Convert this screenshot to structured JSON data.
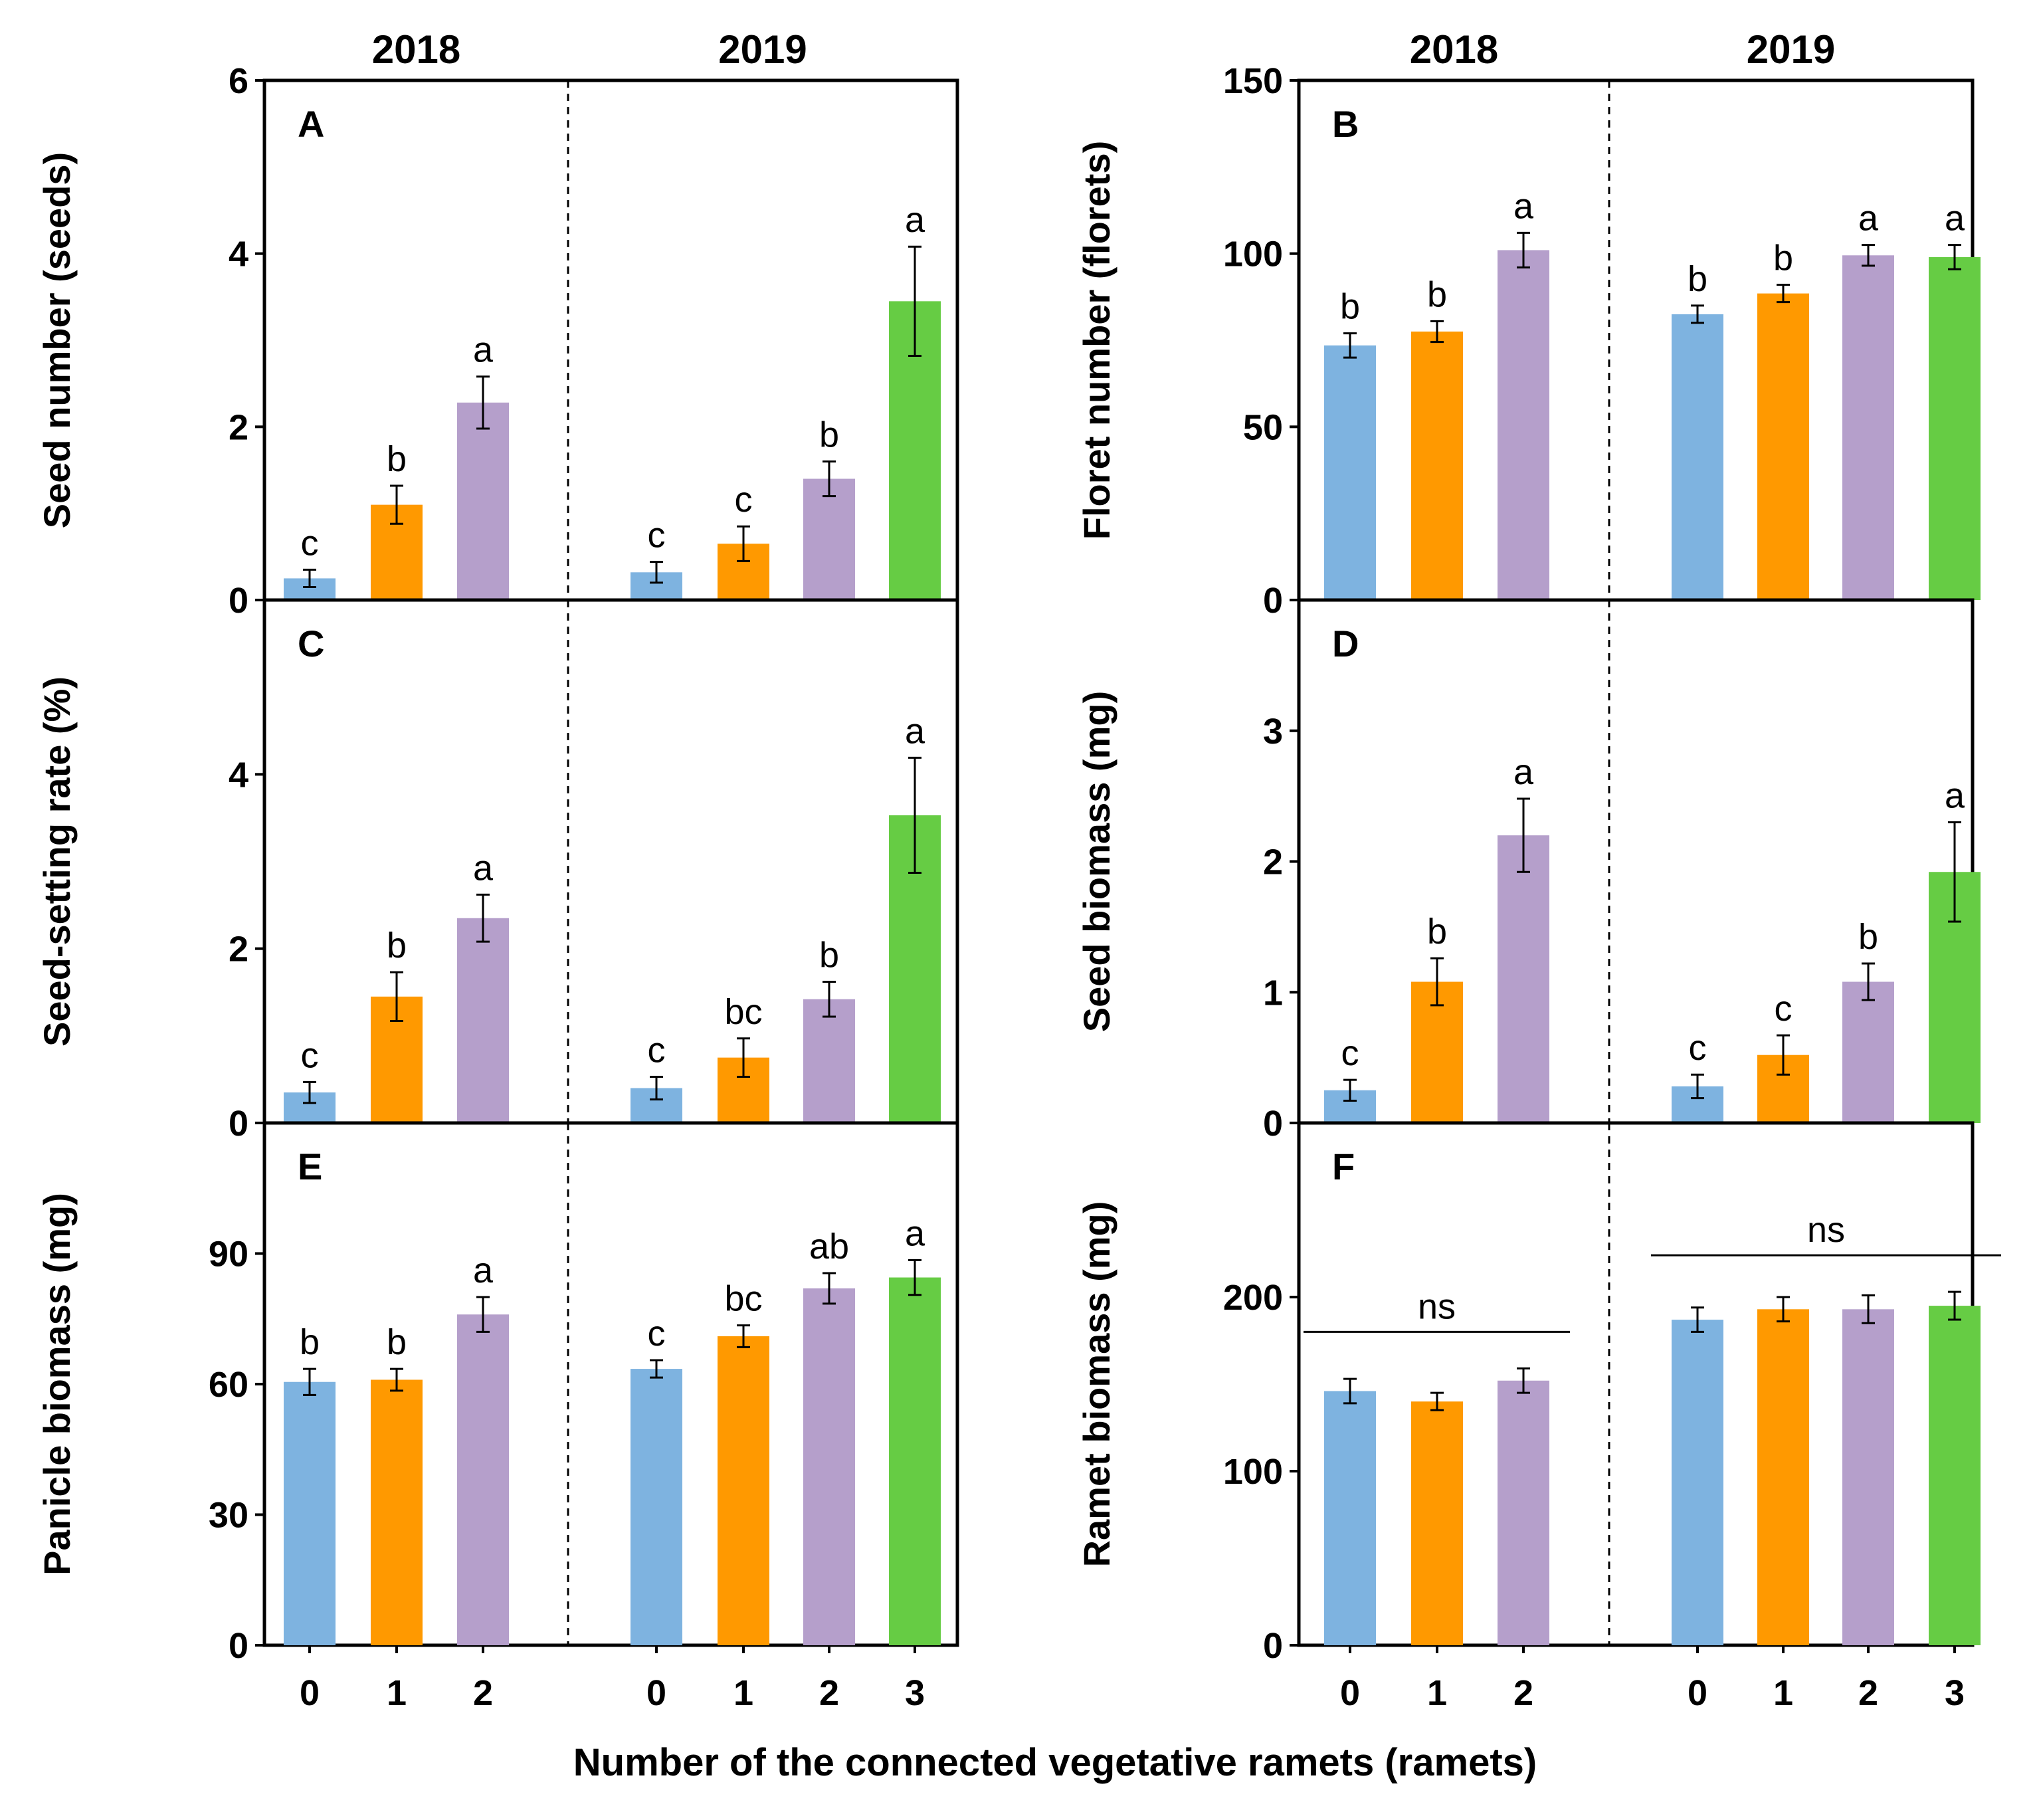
{
  "figure": {
    "xlabel": "Number of the connected vegetative ramets (ramets)",
    "years": [
      "2018",
      "2019"
    ],
    "categories_2018": [
      "0",
      "1",
      "2"
    ],
    "categories_2019": [
      "0",
      "1",
      "2",
      "3"
    ],
    "colors": [
      "#7eb3e0",
      "#ff9900",
      "#b59fcb",
      "#66cc44"
    ]
  },
  "chart_data": [
    {
      "type": "bar",
      "panel": "A",
      "ylabel": "Seed number (seeds)",
      "ylim": [
        0,
        6
      ],
      "yticks": [
        0,
        2,
        4,
        6
      ],
      "series": [
        {
          "name": "2018",
          "values": [
            0.25,
            1.1,
            2.28
          ],
          "errors": [
            0.1,
            0.22,
            0.3
          ],
          "letters": [
            "c",
            "b",
            "a"
          ]
        },
        {
          "name": "2019",
          "values": [
            0.32,
            0.65,
            1.4,
            3.45
          ],
          "errors": [
            0.12,
            0.2,
            0.2,
            0.63
          ],
          "letters": [
            "c",
            "c",
            "b",
            "a"
          ]
        }
      ]
    },
    {
      "type": "bar",
      "panel": "B",
      "ylabel": "Floret number (florets)",
      "ylim": [
        0,
        150
      ],
      "yticks": [
        0,
        50,
        100,
        150
      ],
      "series": [
        {
          "name": "2018",
          "values": [
            73.5,
            77.5,
            101
          ],
          "errors": [
            3.5,
            3,
            5
          ],
          "letters": [
            "b",
            "b",
            "a"
          ]
        },
        {
          "name": "2019",
          "values": [
            82.5,
            88.5,
            99.5,
            99
          ],
          "errors": [
            2.5,
            2.5,
            3,
            3.5
          ],
          "letters": [
            "b",
            "b",
            "a",
            "a"
          ]
        }
      ]
    },
    {
      "type": "bar",
      "panel": "C",
      "ylabel": "Seed-setting rate (%)",
      "ylim": [
        0,
        6
      ],
      "yticks": [
        0,
        2,
        4
      ],
      "series": [
        {
          "name": "2018",
          "values": [
            0.35,
            1.45,
            2.35
          ],
          "errors": [
            0.12,
            0.28,
            0.27
          ],
          "letters": [
            "c",
            "b",
            "a"
          ]
        },
        {
          "name": "2019",
          "values": [
            0.4,
            0.75,
            1.42,
            3.53
          ],
          "errors": [
            0.13,
            0.22,
            0.2,
            0.66
          ],
          "letters": [
            "c",
            "bc",
            "b",
            "a"
          ]
        }
      ]
    },
    {
      "type": "bar",
      "panel": "D",
      "ylabel": "Seed biomass (mg)",
      "ylim": [
        0,
        4
      ],
      "yticks": [
        0,
        1,
        2,
        3
      ],
      "series": [
        {
          "name": "2018",
          "values": [
            0.25,
            1.08,
            2.2
          ],
          "errors": [
            0.08,
            0.18,
            0.28
          ],
          "letters": [
            "c",
            "b",
            "a"
          ]
        },
        {
          "name": "2019",
          "values": [
            0.28,
            0.52,
            1.08,
            1.92
          ],
          "errors": [
            0.09,
            0.15,
            0.14,
            0.38
          ],
          "letters": [
            "c",
            "c",
            "b",
            "a"
          ]
        }
      ]
    },
    {
      "type": "bar",
      "panel": "E",
      "ylabel": "Panicle biomass (mg)",
      "ylim": [
        0,
        120
      ],
      "yticks": [
        0,
        30,
        60,
        90
      ],
      "series": [
        {
          "name": "2018",
          "values": [
            60.5,
            61,
            76
          ],
          "errors": [
            3,
            2.5,
            4
          ],
          "letters": [
            "b",
            "b",
            "a"
          ]
        },
        {
          "name": "2019",
          "values": [
            63.5,
            71,
            82,
            84.5
          ],
          "errors": [
            2,
            2.5,
            3.5,
            4
          ],
          "letters": [
            "c",
            "bc",
            "ab",
            "a"
          ]
        }
      ]
    },
    {
      "type": "bar",
      "panel": "F",
      "ylabel": "Ramet biomass (mg)",
      "ylim": [
        0,
        300
      ],
      "yticks": [
        0,
        100,
        200
      ],
      "series": [
        {
          "name": "2018",
          "values": [
            146,
            140,
            152
          ],
          "errors": [
            7,
            5,
            7
          ],
          "letters": [
            "",
            "",
            ""
          ],
          "bracket": "ns"
        },
        {
          "name": "2019",
          "values": [
            187,
            193,
            193,
            195
          ],
          "errors": [
            7,
            7,
            8,
            8
          ],
          "letters": [
            "",
            "",
            "",
            ""
          ],
          "bracket": "ns"
        }
      ]
    }
  ]
}
